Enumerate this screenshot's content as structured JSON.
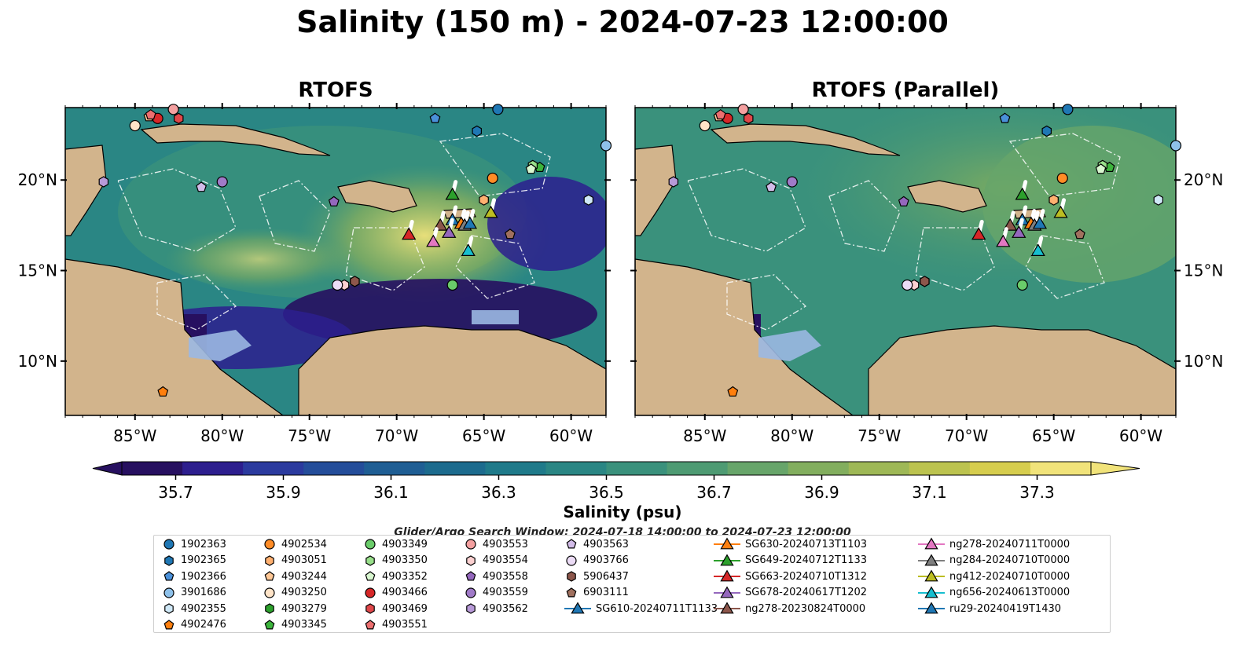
{
  "title": "Salinity (150 m) - 2024-07-23 12:00:00",
  "panels": [
    {
      "title": "RTOFS"
    },
    {
      "title": "RTOFS (Parallel)"
    }
  ],
  "axes": {
    "lon_ticks": [
      "85°W",
      "80°W",
      "75°W",
      "70°W",
      "65°W",
      "60°W"
    ],
    "lat_ticks": [
      "20°N",
      "15°N",
      "10°N"
    ],
    "lon_range": [
      -89,
      -58
    ],
    "lat_range": [
      7,
      24
    ]
  },
  "colorbar": {
    "label": "Salinity (psu)",
    "ticks": [
      "35.7",
      "35.9",
      "36.1",
      "36.3",
      "36.5",
      "36.7",
      "36.9",
      "37.1",
      "37.3"
    ],
    "range": [
      35.6,
      37.4
    ],
    "colors": [
      "#271060",
      "#2d1e8e",
      "#2b3a9e",
      "#244d9a",
      "#1f5e94",
      "#1c6b8e",
      "#1f7a8a",
      "#2a8684",
      "#3a917c",
      "#4e9b73",
      "#67a56a",
      "#82ae5e",
      "#9eb856",
      "#bcc34f",
      "#d6cd4e",
      "#f1e37a"
    ]
  },
  "search_window": "Glider/Argo Search Window: 2024-07-18 14:00:00 to 2024-07-23 12:00:00",
  "legend": [
    {
      "label": "1902363",
      "marker": "circle",
      "color": "#1f77b4"
    },
    {
      "label": "1902365",
      "marker": "hexagon",
      "color": "#1f77b4"
    },
    {
      "label": "1902366",
      "marker": "pentagon",
      "color": "#4a90d9"
    },
    {
      "label": "3901686",
      "marker": "circle",
      "color": "#8ec1ea"
    },
    {
      "label": "4902355",
      "marker": "hexagon",
      "color": "#cfe8f7"
    },
    {
      "label": "4902476",
      "marker": "pentagon",
      "color": "#ff7f0e"
    },
    {
      "label": "4902534",
      "marker": "circle",
      "color": "#ff8c26"
    },
    {
      "label": "4903051",
      "marker": "hexagon",
      "color": "#ffb070"
    },
    {
      "label": "4903244",
      "marker": "pentagon",
      "color": "#ffc896"
    },
    {
      "label": "4903250",
      "marker": "circle",
      "color": "#ffe4c8"
    },
    {
      "label": "4903279",
      "marker": "hexagon",
      "color": "#2ca02c"
    },
    {
      "label": "4903345",
      "marker": "pentagon",
      "color": "#3cb43c"
    },
    {
      "label": "4903349",
      "marker": "circle",
      "color": "#6acc6a"
    },
    {
      "label": "4903350",
      "marker": "hexagon",
      "color": "#98df8a"
    },
    {
      "label": "4903352",
      "marker": "pentagon",
      "color": "#d9f7d0"
    },
    {
      "label": "4903466",
      "marker": "circle",
      "color": "#d62728"
    },
    {
      "label": "4903469",
      "marker": "hexagon",
      "color": "#e0474a"
    },
    {
      "label": "4903551",
      "marker": "pentagon",
      "color": "#ec6f70"
    },
    {
      "label": "4903553",
      "marker": "circle",
      "color": "#f4a0a0"
    },
    {
      "label": "4903554",
      "marker": "hexagon",
      "color": "#fbd0d0"
    },
    {
      "label": "4903558",
      "marker": "pentagon",
      "color": "#9467bd"
    },
    {
      "label": "4903559",
      "marker": "circle",
      "color": "#a07ac8"
    },
    {
      "label": "4903562",
      "marker": "hexagon",
      "color": "#b89ad8"
    },
    {
      "label": "4903563",
      "marker": "pentagon",
      "color": "#d2bce8"
    },
    {
      "label": "4903766",
      "marker": "circle",
      "color": "#ecdcf6"
    },
    {
      "label": "5906437",
      "marker": "hexagon",
      "color": "#8c564b"
    },
    {
      "label": "6903111",
      "marker": "pentagon",
      "color": "#a0705e"
    },
    {
      "label": "SG610-20240711T1133",
      "marker": "triangle-line",
      "color": "#1f77b4"
    },
    {
      "label": "SG630-20240713T1103",
      "marker": "triangle-line",
      "color": "#ff7f0e"
    },
    {
      "label": "SG649-20240712T1133",
      "marker": "triangle-line",
      "color": "#2ca02c"
    },
    {
      "label": "SG663-20240710T1312",
      "marker": "triangle-line",
      "color": "#d62728"
    },
    {
      "label": "SG678-20240617T1202",
      "marker": "triangle-line",
      "color": "#9467bd"
    },
    {
      "label": "ng278-20230824T0000",
      "marker": "triangle-line",
      "color": "#8c564b"
    },
    {
      "label": "ng278-20240711T0000",
      "marker": "triangle-line",
      "color": "#e377c2"
    },
    {
      "label": "ng284-20240710T0000",
      "marker": "triangle-line",
      "color": "#7f7f7f"
    },
    {
      "label": "ng412-20240710T0000",
      "marker": "triangle-line",
      "color": "#bcbd22"
    },
    {
      "label": "ng656-20240613T0000",
      "marker": "triangle-line",
      "color": "#17becf"
    },
    {
      "label": "ru29-20240419T1430",
      "marker": "triangle-line",
      "color": "#1f77b4"
    }
  ],
  "chart_data": {
    "type": "heatmap",
    "variable": "Salinity",
    "depth": "150 m",
    "units": "psu",
    "time": "2024-07-23 12:00:00",
    "xlim": [
      -89,
      -58
    ],
    "ylim": [
      7,
      24
    ],
    "argo_floats": [
      {
        "id": "1902363",
        "lon": -64.2,
        "lat": 23.9
      },
      {
        "id": "1902365",
        "lon": -65.4,
        "lat": 22.7
      },
      {
        "id": "1902366",
        "lon": -67.8,
        "lat": 23.4
      },
      {
        "id": "3901686",
        "lon": -58.0,
        "lat": 21.9
      },
      {
        "id": "4902355",
        "lon": -59.0,
        "lat": 18.9
      },
      {
        "id": "4902476",
        "lon": -83.4,
        "lat": 8.3
      },
      {
        "id": "4902534",
        "lon": -64.5,
        "lat": 20.1
      },
      {
        "id": "4903051",
        "lon": -65.0,
        "lat": 18.9
      },
      {
        "id": "4903244",
        "lon": -84.2,
        "lat": 23.5
      },
      {
        "id": "4903250",
        "lon": -85.0,
        "lat": 23.0
      },
      {
        "id": "4903279",
        "lon": -72.4,
        "lat": 14.4
      },
      {
        "id": "4903345",
        "lon": -61.8,
        "lat": 20.7
      },
      {
        "id": "4903349",
        "lon": -66.8,
        "lat": 14.2
      },
      {
        "id": "4903350",
        "lon": -62.2,
        "lat": 20.8
      },
      {
        "id": "4903352",
        "lon": -62.3,
        "lat": 20.6
      },
      {
        "id": "4903466",
        "lon": -83.7,
        "lat": 23.4
      },
      {
        "id": "4903469",
        "lon": -82.5,
        "lat": 23.4
      },
      {
        "id": "4903551",
        "lon": -84.1,
        "lat": 23.6
      },
      {
        "id": "4903553",
        "lon": -82.8,
        "lat": 23.9
      },
      {
        "id": "4903554",
        "lon": -73.0,
        "lat": 14.2
      },
      {
        "id": "4903558",
        "lon": -73.6,
        "lat": 18.8
      },
      {
        "id": "4903559",
        "lon": -80.0,
        "lat": 19.9
      },
      {
        "id": "4903562",
        "lon": -86.8,
        "lat": 19.9
      },
      {
        "id": "4903563",
        "lon": -81.2,
        "lat": 19.6
      },
      {
        "id": "4903766",
        "lon": -73.4,
        "lat": 14.2
      },
      {
        "id": "5906437",
        "lon": -72.4,
        "lat": 14.4
      },
      {
        "id": "6903111",
        "lon": -63.5,
        "lat": 17.0
      }
    ],
    "gliders": [
      {
        "id": "SG610-20240711T1133",
        "lon": -66.8,
        "lat": 17.8
      },
      {
        "id": "SG630-20240713T1103",
        "lon": -66.3,
        "lat": 17.6
      },
      {
        "id": "SG649-20240712T1133",
        "lon": -66.8,
        "lat": 19.2
      },
      {
        "id": "SG663-20240710T1312",
        "lon": -69.3,
        "lat": 17.0
      },
      {
        "id": "SG678-20240617T1202",
        "lon": -67.0,
        "lat": 17.1
      },
      {
        "id": "ng278-20230824T0000",
        "lon": -67.5,
        "lat": 17.5
      },
      {
        "id": "ng278-20240711T0000",
        "lon": -67.9,
        "lat": 16.6
      },
      {
        "id": "ng284-20240710T0000",
        "lon": -66.1,
        "lat": 17.5
      },
      {
        "id": "ng412-20240710T0000",
        "lon": -64.6,
        "lat": 18.2
      },
      {
        "id": "ng656-20240613T0000",
        "lon": -65.9,
        "lat": 16.1
      },
      {
        "id": "ru29-20240419T1430",
        "lon": -65.8,
        "lat": 17.6
      }
    ]
  }
}
